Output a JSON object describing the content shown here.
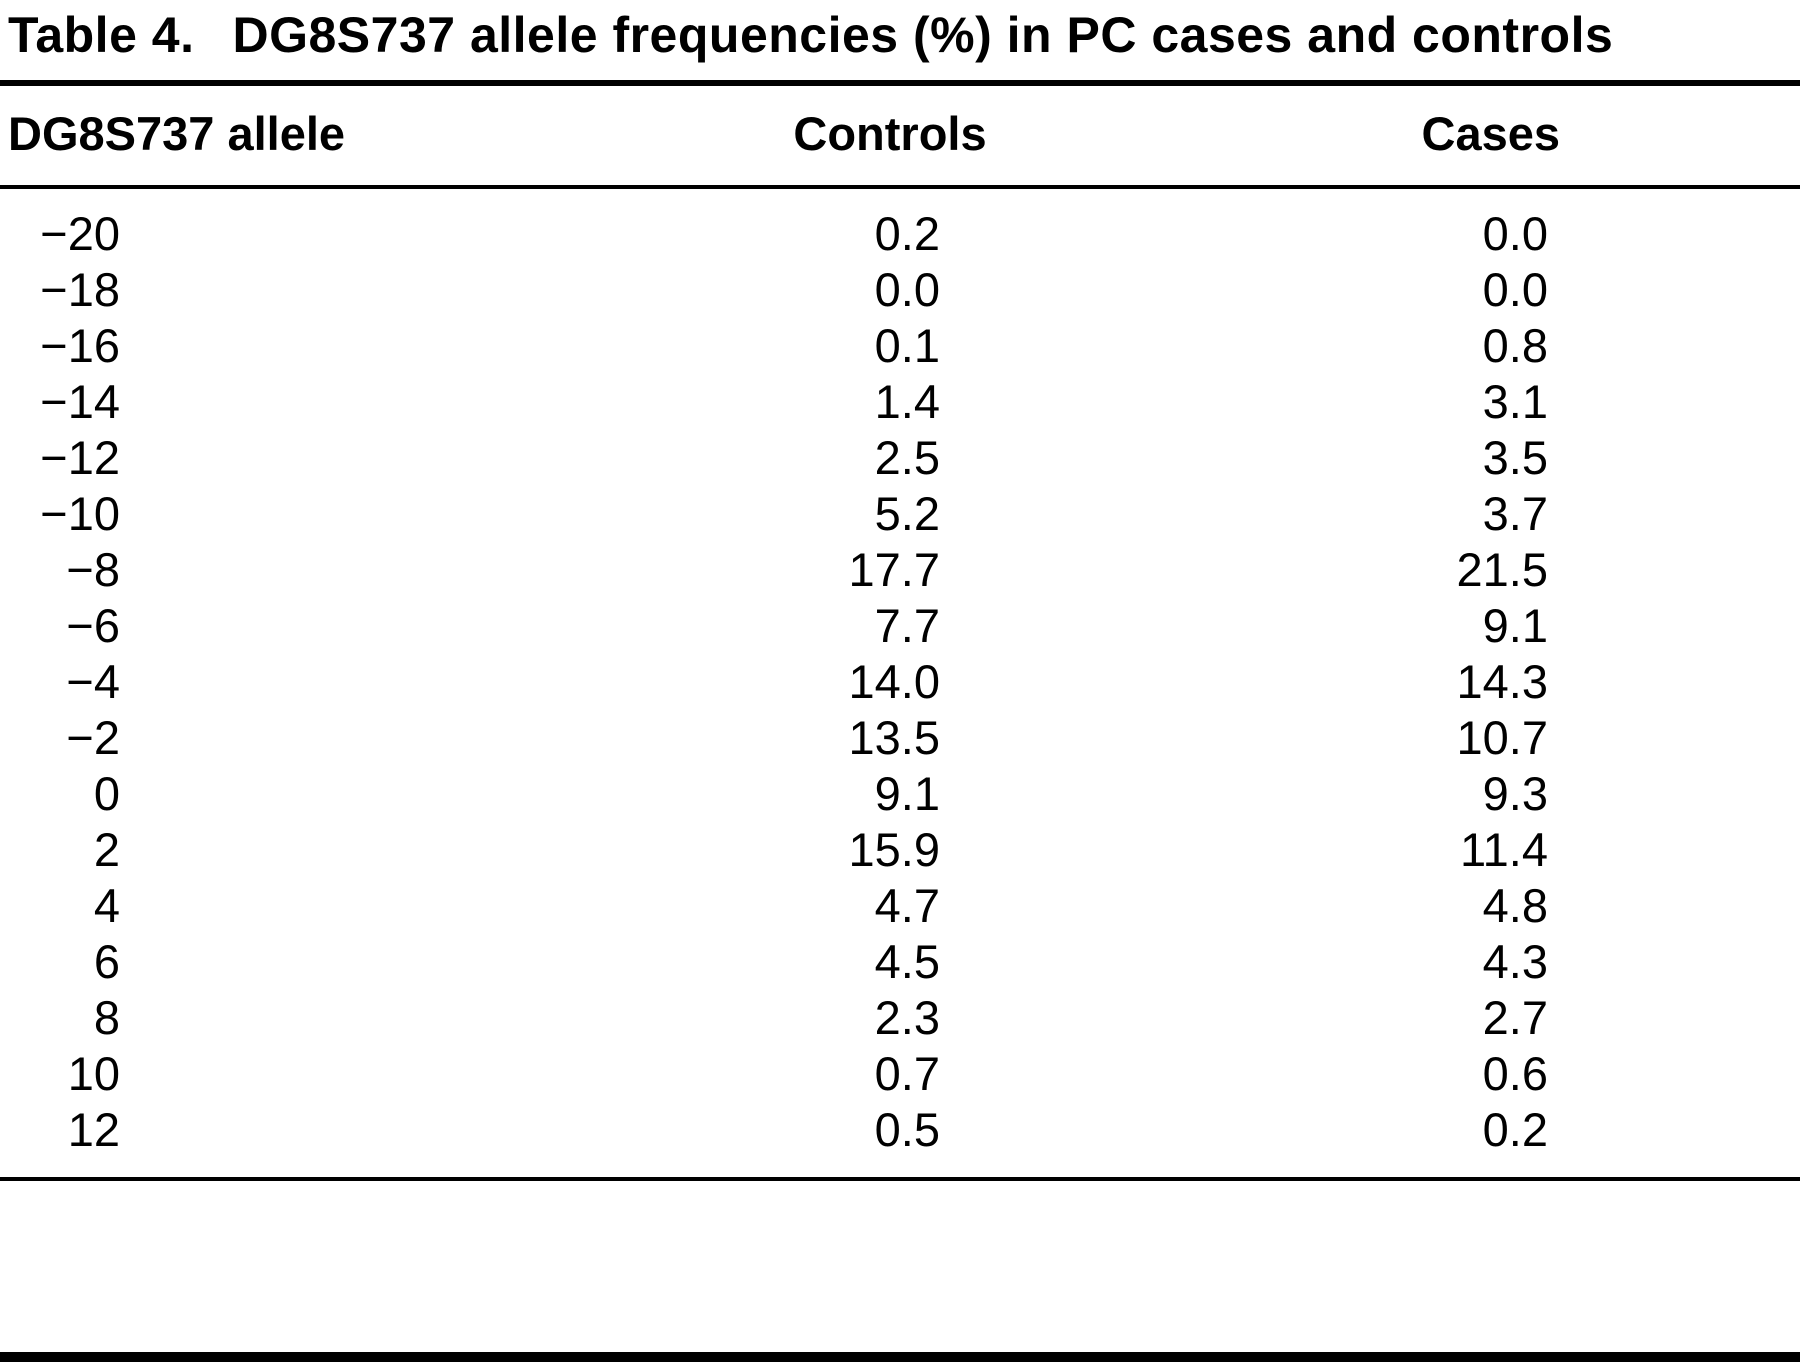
{
  "title": {
    "label": "Table 4.",
    "text": "DG8S737 allele frequencies (%) in PC cases and controls"
  },
  "table": {
    "columns": [
      "DG8S737 allele",
      "Controls",
      "Cases"
    ],
    "rows": [
      {
        "allele": "−20",
        "controls": "0.2",
        "cases": "0.0"
      },
      {
        "allele": "−18",
        "controls": "0.0",
        "cases": "0.0"
      },
      {
        "allele": "−16",
        "controls": "0.1",
        "cases": "0.8"
      },
      {
        "allele": "−14",
        "controls": "1.4",
        "cases": "3.1"
      },
      {
        "allele": "−12",
        "controls": "2.5",
        "cases": "3.5"
      },
      {
        "allele": "−10",
        "controls": "5.2",
        "cases": "3.7"
      },
      {
        "allele": "−8",
        "controls": "17.7",
        "cases": "21.5"
      },
      {
        "allele": "−6",
        "controls": "7.7",
        "cases": "9.1"
      },
      {
        "allele": "−4",
        "controls": "14.0",
        "cases": "14.3"
      },
      {
        "allele": "−2",
        "controls": "13.5",
        "cases": "10.7"
      },
      {
        "allele": "0",
        "controls": "9.1",
        "cases": "9.3"
      },
      {
        "allele": "2",
        "controls": "15.9",
        "cases": "11.4"
      },
      {
        "allele": "4",
        "controls": "4.7",
        "cases": "4.8"
      },
      {
        "allele": "6",
        "controls": "4.5",
        "cases": "4.3"
      },
      {
        "allele": "8",
        "controls": "2.3",
        "cases": "2.7"
      },
      {
        "allele": "10",
        "controls": "0.7",
        "cases": "0.6"
      },
      {
        "allele": "12",
        "controls": "0.5",
        "cases": "0.2"
      }
    ]
  },
  "colors": {
    "text": "#000000",
    "rule": "#000000",
    "background": "#ffffff"
  }
}
